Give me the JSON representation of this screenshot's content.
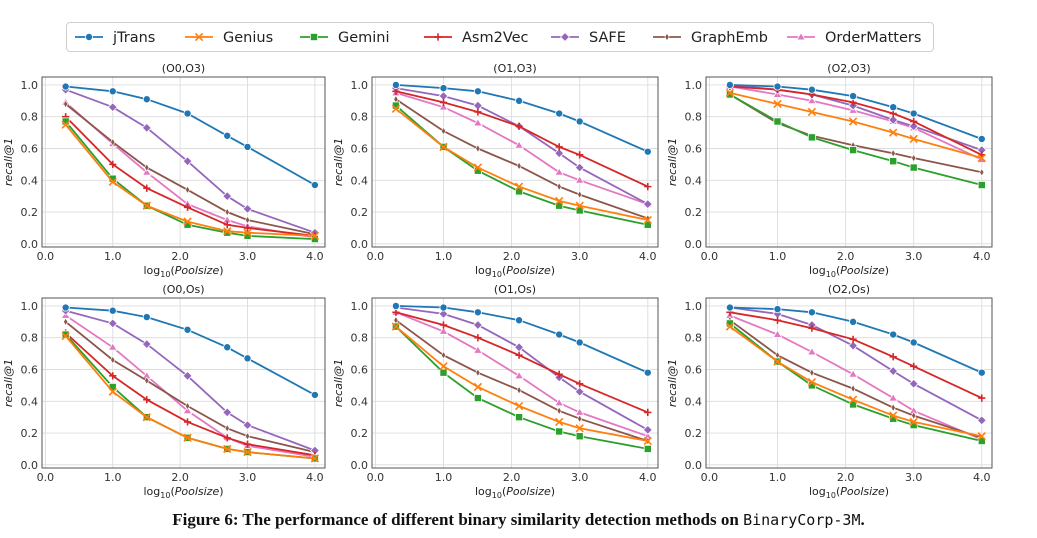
{
  "caption": {
    "prefix": "Figure 6: The performance of different binary similarity detection methods on",
    "dataset": "BinaryCorp-3M",
    "suffix": "."
  },
  "legend": [
    {
      "name": "jTrans",
      "color": "#1f77b4",
      "marker": "circle"
    },
    {
      "name": "Genius",
      "color": "#ff7f0e",
      "marker": "x"
    },
    {
      "name": "Gemini",
      "color": "#2ca02c",
      "marker": "square"
    },
    {
      "name": "Asm2Vec",
      "color": "#d62728",
      "marker": "plus"
    },
    {
      "name": "SAFE",
      "color": "#9467bd",
      "marker": "diamond"
    },
    {
      "name": "GraphEmb",
      "color": "#8c564b",
      "marker": "thin-diamond"
    },
    {
      "name": "OrderMatters",
      "color": "#e377c2",
      "marker": "triangle"
    }
  ],
  "chart_data": [
    {
      "type": "line",
      "title": "(O0,O3)",
      "xlabel": "log10(Poolsize)",
      "ylabel": "recall@1",
      "xlim": [
        0.0,
        4.0
      ],
      "ylim": [
        0.0,
        1.0
      ],
      "xticks": [
        "0.0",
        "1.0",
        "2.0",
        "3.0",
        "4.0"
      ],
      "yticks": [
        "0.0",
        "0.2",
        "0.4",
        "0.6",
        "0.8",
        "1.0"
      ],
      "grid": true,
      "x": [
        0.301,
        1.0,
        1.505,
        2.11,
        2.699,
        3.0,
        4.0
      ],
      "series": [
        {
          "name": "jTrans",
          "values": [
            0.99,
            0.96,
            0.91,
            0.82,
            0.68,
            0.61,
            0.37
          ]
        },
        {
          "name": "Genius",
          "values": [
            0.75,
            0.39,
            0.24,
            0.14,
            0.08,
            0.07,
            0.05
          ]
        },
        {
          "name": "Gemini",
          "values": [
            0.77,
            0.41,
            0.24,
            0.12,
            0.07,
            0.05,
            0.03
          ]
        },
        {
          "name": "Asm2Vec",
          "values": [
            0.8,
            0.5,
            0.35,
            0.23,
            0.12,
            0.1,
            0.05
          ]
        },
        {
          "name": "SAFE",
          "values": [
            0.97,
            0.86,
            0.73,
            0.52,
            0.3,
            0.22,
            0.07
          ]
        },
        {
          "name": "GraphEmb",
          "values": [
            0.88,
            0.64,
            0.48,
            0.34,
            0.2,
            0.15,
            0.06
          ]
        },
        {
          "name": "OrderMatters",
          "values": [
            0.89,
            0.63,
            0.45,
            0.25,
            0.15,
            0.11,
            0.04
          ]
        }
      ]
    },
    {
      "type": "line",
      "title": "(O1,O3)",
      "xlabel": "log10(Poolsize)",
      "ylabel": "recall@1",
      "xlim": [
        0.0,
        4.0
      ],
      "ylim": [
        0.0,
        1.0
      ],
      "xticks": [
        "0.0",
        "1.0",
        "2.0",
        "3.0",
        "4.0"
      ],
      "yticks": [
        "0.0",
        "0.2",
        "0.4",
        "0.6",
        "0.8",
        "1.0"
      ],
      "grid": true,
      "x": [
        0.301,
        1.0,
        1.505,
        2.11,
        2.699,
        3.0,
        4.0
      ],
      "series": [
        {
          "name": "jTrans",
          "values": [
            1.0,
            0.98,
            0.96,
            0.9,
            0.82,
            0.77,
            0.58
          ]
        },
        {
          "name": "Genius",
          "values": [
            0.85,
            0.61,
            0.48,
            0.36,
            0.27,
            0.24,
            0.15
          ]
        },
        {
          "name": "Gemini",
          "values": [
            0.87,
            0.61,
            0.46,
            0.33,
            0.24,
            0.21,
            0.12
          ]
        },
        {
          "name": "Asm2Vec",
          "values": [
            0.96,
            0.89,
            0.83,
            0.74,
            0.61,
            0.56,
            0.36
          ]
        },
        {
          "name": "SAFE",
          "values": [
            0.98,
            0.93,
            0.87,
            0.74,
            0.57,
            0.48,
            0.25
          ]
        },
        {
          "name": "GraphEmb",
          "values": [
            0.91,
            0.71,
            0.6,
            0.49,
            0.36,
            0.31,
            0.16
          ]
        },
        {
          "name": "OrderMatters",
          "values": [
            0.95,
            0.86,
            0.76,
            0.62,
            0.45,
            0.4,
            0.25
          ]
        }
      ]
    },
    {
      "type": "line",
      "title": "(O2,O3)",
      "xlabel": "log10(Poolsize)",
      "ylabel": "recall@1",
      "xlim": [
        0.0,
        4.0
      ],
      "ylim": [
        0.0,
        1.0
      ],
      "xticks": [
        "0.0",
        "1.0",
        "2.0",
        "3.0",
        "4.0"
      ],
      "yticks": [
        "0.0",
        "0.2",
        "0.4",
        "0.6",
        "0.8",
        "1.0"
      ],
      "grid": true,
      "x": [
        0.301,
        1.0,
        1.505,
        2.11,
        2.699,
        3.0,
        4.0
      ],
      "series": [
        {
          "name": "jTrans",
          "values": [
            1.0,
            0.99,
            0.97,
            0.93,
            0.86,
            0.82,
            0.66
          ]
        },
        {
          "name": "Genius",
          "values": [
            0.95,
            0.88,
            0.83,
            0.77,
            0.7,
            0.66,
            0.54
          ]
        },
        {
          "name": "Gemini",
          "values": [
            0.94,
            0.77,
            0.67,
            0.59,
            0.52,
            0.48,
            0.37
          ]
        },
        {
          "name": "Asm2Vec",
          "values": [
            0.99,
            0.97,
            0.94,
            0.89,
            0.82,
            0.77,
            0.56
          ]
        },
        {
          "name": "SAFE",
          "values": [
            1.0,
            0.97,
            0.94,
            0.87,
            0.78,
            0.74,
            0.59
          ]
        },
        {
          "name": "GraphEmb",
          "values": [
            0.94,
            0.76,
            0.68,
            0.62,
            0.57,
            0.54,
            0.45
          ]
        },
        {
          "name": "OrderMatters",
          "values": [
            0.99,
            0.94,
            0.9,
            0.84,
            0.77,
            0.73,
            0.53
          ]
        }
      ]
    },
    {
      "type": "line",
      "title": "(O0,Os)",
      "xlabel": "log10(Poolsize)",
      "ylabel": "recall@1",
      "xlim": [
        0.0,
        4.0
      ],
      "ylim": [
        0.0,
        1.0
      ],
      "xticks": [
        "0.0",
        "1.0",
        "2.0",
        "3.0",
        "4.0"
      ],
      "yticks": [
        "0.0",
        "0.2",
        "0.4",
        "0.6",
        "0.8",
        "1.0"
      ],
      "grid": true,
      "x": [
        0.301,
        1.0,
        1.505,
        2.11,
        2.699,
        3.0,
        4.0
      ],
      "series": [
        {
          "name": "jTrans",
          "values": [
            0.99,
            0.97,
            0.93,
            0.85,
            0.74,
            0.67,
            0.44
          ]
        },
        {
          "name": "Genius",
          "values": [
            0.81,
            0.46,
            0.3,
            0.17,
            0.1,
            0.08,
            0.04
          ]
        },
        {
          "name": "Gemini",
          "values": [
            0.82,
            0.49,
            0.3,
            0.17,
            0.1,
            0.08,
            0.04
          ]
        },
        {
          "name": "Asm2Vec",
          "values": [
            0.83,
            0.56,
            0.41,
            0.27,
            0.17,
            0.13,
            0.06
          ]
        },
        {
          "name": "SAFE",
          "values": [
            0.97,
            0.89,
            0.76,
            0.56,
            0.33,
            0.25,
            0.09
          ]
        },
        {
          "name": "GraphEmb",
          "values": [
            0.9,
            0.66,
            0.53,
            0.37,
            0.23,
            0.18,
            0.08
          ]
        },
        {
          "name": "OrderMatters",
          "values": [
            0.94,
            0.74,
            0.56,
            0.34,
            0.17,
            0.12,
            0.05
          ]
        }
      ]
    },
    {
      "type": "line",
      "title": "(O1,Os)",
      "xlabel": "log10(Poolsize)",
      "ylabel": "recall@1",
      "xlim": [
        0.0,
        4.0
      ],
      "ylim": [
        0.0,
        1.0
      ],
      "xticks": [
        "0.0",
        "1.0",
        "2.0",
        "3.0",
        "4.0"
      ],
      "yticks": [
        "0.0",
        "0.2",
        "0.4",
        "0.6",
        "0.8",
        "1.0"
      ],
      "grid": true,
      "x": [
        0.301,
        1.0,
        1.505,
        2.11,
        2.699,
        3.0,
        4.0
      ],
      "series": [
        {
          "name": "jTrans",
          "values": [
            1.0,
            0.99,
            0.96,
            0.91,
            0.82,
            0.77,
            0.58
          ]
        },
        {
          "name": "Genius",
          "values": [
            0.87,
            0.62,
            0.49,
            0.37,
            0.27,
            0.23,
            0.15
          ]
        },
        {
          "name": "Gemini",
          "values": [
            0.87,
            0.58,
            0.42,
            0.3,
            0.21,
            0.18,
            0.1
          ]
        },
        {
          "name": "Asm2Vec",
          "values": [
            0.96,
            0.88,
            0.8,
            0.69,
            0.57,
            0.51,
            0.33
          ]
        },
        {
          "name": "SAFE",
          "values": [
            0.99,
            0.95,
            0.88,
            0.74,
            0.55,
            0.46,
            0.22
          ]
        },
        {
          "name": "GraphEmb",
          "values": [
            0.91,
            0.69,
            0.58,
            0.47,
            0.34,
            0.29,
            0.15
          ]
        },
        {
          "name": "OrderMatters",
          "values": [
            0.96,
            0.84,
            0.72,
            0.56,
            0.39,
            0.33,
            0.18
          ]
        }
      ]
    },
    {
      "type": "line",
      "title": "(O2,Os)",
      "xlabel": "log10(Poolsize)",
      "ylabel": "recall@1",
      "xlim": [
        0.0,
        4.0
      ],
      "ylim": [
        0.0,
        1.0
      ],
      "xticks": [
        "0.0",
        "1.0",
        "2.0",
        "3.0",
        "4.0"
      ],
      "yticks": [
        "0.0",
        "0.2",
        "0.4",
        "0.6",
        "0.8",
        "1.0"
      ],
      "grid": true,
      "x": [
        0.301,
        1.0,
        1.505,
        2.11,
        2.699,
        3.0,
        4.0
      ],
      "series": [
        {
          "name": "jTrans",
          "values": [
            0.99,
            0.98,
            0.96,
            0.9,
            0.82,
            0.77,
            0.58
          ]
        },
        {
          "name": "Genius",
          "values": [
            0.87,
            0.65,
            0.52,
            0.41,
            0.31,
            0.27,
            0.18
          ]
        },
        {
          "name": "Gemini",
          "values": [
            0.89,
            0.65,
            0.5,
            0.38,
            0.29,
            0.25,
            0.15
          ]
        },
        {
          "name": "Asm2Vec",
          "values": [
            0.96,
            0.91,
            0.86,
            0.79,
            0.68,
            0.62,
            0.42
          ]
        },
        {
          "name": "SAFE",
          "values": [
            0.99,
            0.95,
            0.88,
            0.75,
            0.59,
            0.51,
            0.28
          ]
        },
        {
          "name": "GraphEmb",
          "values": [
            0.91,
            0.69,
            0.58,
            0.48,
            0.36,
            0.31,
            0.17
          ]
        },
        {
          "name": "OrderMatters",
          "values": [
            0.94,
            0.82,
            0.71,
            0.57,
            0.42,
            0.34,
            0.16
          ]
        }
      ]
    }
  ]
}
